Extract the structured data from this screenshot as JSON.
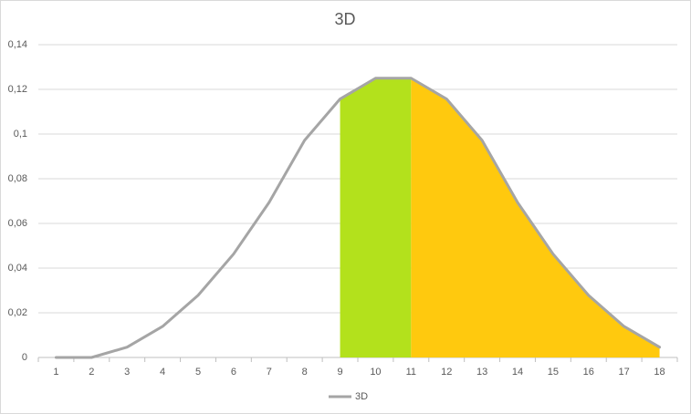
{
  "chart_data": {
    "type": "line",
    "title": "3D",
    "categories": [
      "1",
      "2",
      "3",
      "4",
      "5",
      "6",
      "7",
      "8",
      "9",
      "10",
      "11",
      "12",
      "13",
      "14",
      "15",
      "16",
      "17",
      "18"
    ],
    "series": [
      {
        "color": "#b3e11c",
        "fill": true,
        "values": [
          null,
          null,
          null,
          null,
          null,
          null,
          null,
          null,
          0.1157,
          0.125,
          0.125,
          null,
          null,
          null,
          null,
          null,
          null,
          null
        ]
      },
      {
        "color": "#ffc90e",
        "fill": true,
        "values": [
          null,
          null,
          null,
          null,
          null,
          null,
          null,
          null,
          null,
          null,
          0.125,
          0.1157,
          0.0972,
          0.0694,
          0.0463,
          0.0278,
          0.0139,
          0.0046
        ]
      },
      {
        "name": "3D",
        "color": "#a5a5a5",
        "values": [
          0,
          0,
          0.0046,
          0.0139,
          0.0278,
          0.0463,
          0.0694,
          0.0972,
          0.1157,
          0.125,
          0.125,
          0.1157,
          0.0972,
          0.0694,
          0.0463,
          0.0278,
          0.0139,
          0.0046
        ]
      }
    ],
    "ylim": [
      0,
      0.14
    ],
    "yticks": [
      0,
      {
        "value": 0.02,
        "label": "0,02"
      },
      {
        "value": 0.04,
        "label": "0,04"
      },
      {
        "value": 0.06,
        "label": "0,06"
      },
      {
        "value": 0.08,
        "label": "0,08"
      },
      {
        "value": 0.1,
        "label": "0,1"
      },
      {
        "value": 0.12,
        "label": "0,12"
      },
      {
        "value": 0.14,
        "label": "0,14"
      }
    ],
    "grid": true,
    "legend": "bottom"
  }
}
